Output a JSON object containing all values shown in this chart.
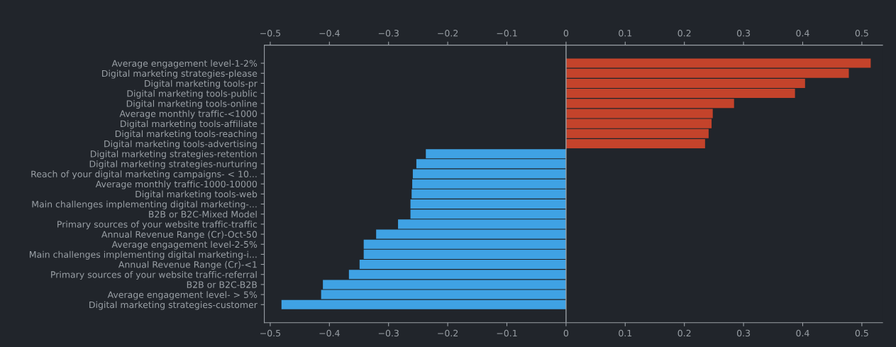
{
  "chart_data": {
    "type": "bar",
    "orientation": "horizontal",
    "categories": [
      "Average engagement level-1-2%",
      "Digital marketing strategies-please",
      "Digital marketing tools-pr",
      "Digital marketing tools-public",
      "Digital marketing tools-online",
      "Average monthly traffic-<1000",
      "Digital marketing tools-affiliate",
      "Digital marketing tools-reaching",
      "Digital marketing tools-advertising",
      "Digital marketing strategies-retention",
      "Digital marketing strategies-nurturing",
      "Reach of your digital marketing campaigns- < 10...",
      "Average monthly traffic-1000-10000",
      "Digital marketing tools-web",
      "Main challenges implementing digital marketing-...",
      "B2B or B2C-Mixed Model",
      "Primary sources of your website traffic-traffic",
      "Annual Revenue Range (Cr)-Oct-50",
      "Average engagement level-2-5%",
      "Main challenges implementing digital marketing-i...",
      "Annual Revenue Range (Cr)-<1",
      "Primary sources of your website traffic-referral",
      "B2B or B2C-B2B",
      "Average engagement level- > 5%",
      "Digital marketing strategies-customer"
    ],
    "values": [
      0.515,
      0.478,
      0.404,
      0.387,
      0.284,
      0.248,
      0.246,
      0.241,
      0.235,
      -0.237,
      -0.253,
      -0.259,
      -0.26,
      -0.261,
      -0.263,
      -0.263,
      -0.284,
      -0.321,
      -0.342,
      -0.342,
      -0.349,
      -0.367,
      -0.411,
      -0.414,
      -0.481
    ],
    "colors": [
      "#c4432b",
      "#c4432b",
      "#c4432b",
      "#c4432b",
      "#c4432b",
      "#c4432b",
      "#c4432b",
      "#c4432b",
      "#c4432b",
      "#3fa2e4",
      "#3fa2e4",
      "#3fa2e4",
      "#3fa2e4",
      "#3fa2e4",
      "#3fa2e4",
      "#3fa2e4",
      "#3fa2e4",
      "#3fa2e4",
      "#3fa2e4",
      "#3fa2e4",
      "#3fa2e4",
      "#3fa2e4",
      "#3fa2e4",
      "#3fa2e4",
      "#3fa2e4"
    ],
    "xlim": [
      -0.51,
      0.535
    ],
    "xticks": [
      {
        "value": -0.5,
        "label": "−0.5"
      },
      {
        "value": -0.4,
        "label": "−0.4"
      },
      {
        "value": -0.3,
        "label": "−0.3"
      },
      {
        "value": -0.2,
        "label": "−0.2"
      },
      {
        "value": -0.1,
        "label": "−0.1"
      },
      0,
      0.1,
      0.2,
      0.3,
      0.4,
      0.5
    ],
    "x2lim": [
      -0.51,
      0.535
    ],
    "x2ticks": [
      {
        "value": -0.5,
        "label": "−0.5"
      },
      {
        "value": -0.4,
        "label": "−0.4"
      },
      {
        "value": -0.3,
        "label": "−0.3"
      },
      {
        "value": -0.2,
        "label": "−0.2"
      },
      {
        "value": -0.1,
        "label": "−0.1"
      },
      0,
      0.1,
      0.2,
      0.3,
      0.4,
      0.5
    ],
    "ref_lines": [
      {
        "axis": "x",
        "value": 0,
        "label": null,
        "color": "#9aa0a6"
      }
    ],
    "grid": false,
    "legend": false
  }
}
